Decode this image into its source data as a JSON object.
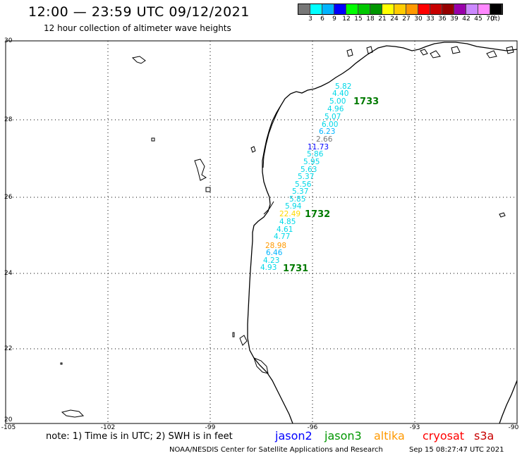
{
  "header": {
    "title": "12:00 — 23:59 UTC 09/12/2021",
    "subtitle": "12 hour collection of altimeter wave heights"
  },
  "colorbar": {
    "colors": [
      "#777777",
      "#00ffff",
      "#00b4ff",
      "#0000ff",
      "#00ff00",
      "#00c800",
      "#009600",
      "#ffff00",
      "#ffcc00",
      "#ff9900",
      "#ff0000",
      "#c80000",
      "#960000",
      "#9900aa",
      "#cc88ff",
      "#ff88ff",
      "#000000"
    ],
    "labels": [
      "3",
      "6",
      "9",
      "12",
      "15",
      "18",
      "21",
      "24",
      "27",
      "30",
      "33",
      "36",
      "39",
      "42",
      "45",
      "70",
      "(ft)"
    ]
  },
  "axes": {
    "lat_labels": [
      "30",
      "28",
      "26",
      "24",
      "22",
      "20"
    ],
    "lon_labels": [
      "-105",
      "-102",
      "-99",
      "-96",
      "-93",
      "-90"
    ]
  },
  "swh_values": [
    {
      "text": "5.82",
      "color": "#00d8e8"
    },
    {
      "text": "4.40",
      "color": "#00d8e8"
    },
    {
      "text": "5.00",
      "color": "#00d8e8"
    },
    {
      "text": "4.96",
      "color": "#00d8e8"
    },
    {
      "text": "5.07",
      "color": "#00d8e8"
    },
    {
      "text": "6.00",
      "color": "#00d8e8"
    },
    {
      "text": "6.23",
      "color": "#00b4ff"
    },
    {
      "text": "2.66",
      "color": "#777777"
    },
    {
      "text": "11.73",
      "color": "#0000ff"
    },
    {
      "text": "5.86",
      "color": "#00d8e8"
    },
    {
      "text": "5.95",
      "color": "#00d8e8"
    },
    {
      "text": "5.63",
      "color": "#00d8e8"
    },
    {
      "text": "5.37",
      "color": "#00d8e8"
    },
    {
      "text": "5.56",
      "color": "#00d8e8"
    },
    {
      "text": "5.37",
      "color": "#00d8e8"
    },
    {
      "text": "5.85",
      "color": "#00d8e8"
    },
    {
      "text": "5.94",
      "color": "#00d8e8"
    },
    {
      "text": "22.49",
      "color": "#ffd800"
    },
    {
      "text": "4.85",
      "color": "#00d8e8"
    },
    {
      "text": "4.61",
      "color": "#00d8e8"
    },
    {
      "text": "4.77",
      "color": "#00d8e8"
    },
    {
      "text": "28.98",
      "color": "#ff9900"
    },
    {
      "text": "6.46",
      "color": "#00b4ff"
    },
    {
      "text": "4.23",
      "color": "#00d8e8"
    },
    {
      "text": "4.93",
      "color": "#00d8e8"
    }
  ],
  "passes": [
    "1733",
    "1732",
    "1731"
  ],
  "note": "note:  1) Time is in UTC;  2) SWH is in feet",
  "legend": [
    {
      "label": "jason2",
      "color": "#0000ff"
    },
    {
      "label": "jason3",
      "color": "#009600"
    },
    {
      "label": "altika",
      "color": "#ff9900"
    },
    {
      "label": "cryosat",
      "color": "#ff0000"
    },
    {
      "label": "s3a",
      "color": "#c80000"
    }
  ],
  "footer": {
    "left": "NOAA/NESDIS Center for Satellite Applications and Research",
    "right": "Sep 15 08:27:47 UTC 2021"
  }
}
